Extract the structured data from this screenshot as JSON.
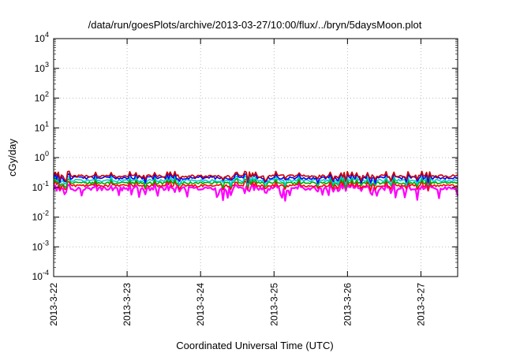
{
  "chart_data": {
    "type": "line",
    "title": "/data/run/goesPlots/archive/2013-03-27/10:00/flux/../bryn/5daysMoon.plot",
    "xlabel": "Coordinated Universal Time (UTC)",
    "ylabel": "cGy/day",
    "yscale": "log",
    "ylim": [
      0.0001,
      10000
    ],
    "xlim": [
      "2013-03-22",
      "2013-03-27 12:00"
    ],
    "x_ticks": [
      "2013-3-22",
      "2013-3-23",
      "2013-3-24",
      "2013-3-25",
      "2013-3-26",
      "2013-3-27"
    ],
    "y_ticks": [
      {
        "base": "10",
        "exp": "-4"
      },
      {
        "base": "10",
        "exp": "-3"
      },
      {
        "base": "10",
        "exp": "-2"
      },
      {
        "base": "10",
        "exp": "-1"
      },
      {
        "base": "10",
        "exp": "0"
      },
      {
        "base": "10",
        "exp": "1"
      },
      {
        "base": "10",
        "exp": "2"
      },
      {
        "base": "10",
        "exp": "3"
      },
      {
        "base": "10",
        "exp": "4"
      }
    ],
    "grid": true,
    "legend": "none",
    "series": [
      {
        "color": "#ff00ff",
        "level": 0.09,
        "spread": 0.3,
        "low_spikes": true
      },
      {
        "color": "#ff0000",
        "level": 0.115,
        "spread": 0.18
      },
      {
        "color": "#00aa00",
        "level": 0.14,
        "spread": 0.18
      },
      {
        "color": "#00cccc",
        "level": 0.17,
        "spread": 0.2
      },
      {
        "color": "#0000ff",
        "level": 0.21,
        "spread": 0.22
      },
      {
        "color": "#cc0000",
        "level": 0.24,
        "spread": 0.2
      }
    ]
  }
}
